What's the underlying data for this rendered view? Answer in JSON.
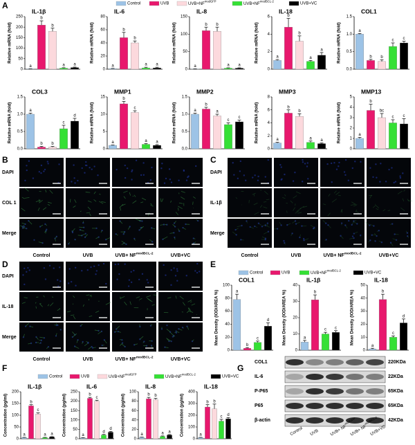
{
  "panel_labels": [
    "A",
    "B",
    "C",
    "D",
    "E",
    "F",
    "G"
  ],
  "chart_data": [
    {
      "type": "bar",
      "ylabel": "Relative mRNA (fold)",
      "legend": [
        {
          "name": "Control",
          "color": "#9dc3e6"
        },
        {
          "name": "UVB",
          "color": "#e8186d"
        },
        {
          "name": {
            "text": "UVB+NF",
            "sup": "modGFP"
          },
          "color": "#fcd9dd"
        },
        {
          "name": {
            "text": "UVB+NF",
            "sup": "modBCL-2"
          },
          "color": "#35e035"
        },
        {
          "name": "UVB+VC",
          "color": "#000000"
        }
      ],
      "subplots": [
        {
          "title": "IL-1β",
          "ylim": [
            0,
            250
          ],
          "yticks": [
            0,
            50,
            100,
            150,
            200,
            250
          ],
          "values": [
            2,
            210,
            180,
            5,
            8
          ],
          "errors": [
            0.5,
            20,
            15,
            2,
            2
          ],
          "letters": [
            "a",
            "b",
            "b",
            "a",
            "a"
          ]
        },
        {
          "title": "IL-6",
          "ylim": [
            0,
            80
          ],
          "yticks": [
            0,
            20,
            40,
            60,
            80
          ],
          "values": [
            1,
            48,
            40,
            2,
            2
          ],
          "errors": [
            0.2,
            8,
            3,
            1,
            1
          ],
          "letters": [
            "a",
            "b",
            "b",
            "a",
            "a"
          ]
        },
        {
          "title": "IL-8",
          "ylim": [
            0,
            150
          ],
          "yticks": [
            0,
            50,
            100,
            150
          ],
          "values": [
            1,
            110,
            108,
            3,
            3
          ],
          "errors": [
            0.2,
            10,
            12,
            1,
            1
          ],
          "letters": [
            "a",
            "b",
            "b",
            "a",
            "a"
          ]
        },
        {
          "title": "IL-18",
          "ylim": [
            0,
            6
          ],
          "yticks": [
            0,
            2,
            4,
            6
          ],
          "values": [
            1,
            4.8,
            3.2,
            0.9,
            1.6
          ],
          "errors": [
            0.1,
            1,
            0.6,
            0.1,
            0.3
          ],
          "letters": [
            "a",
            "b",
            "b",
            "a",
            "a"
          ]
        },
        {
          "title": "COL1",
          "ylim": [
            0,
            1.5
          ],
          "yticks": [
            {
              "value": 0,
              "label": "0.0"
            },
            0.5,
            {
              "value": 1,
              "label": "1.0"
            },
            1.5
          ],
          "values": [
            1,
            0.25,
            0.22,
            0.65,
            0.75
          ],
          "errors": [
            0.02,
            0.03,
            0.05,
            0.1,
            0.05
          ],
          "letters": [
            "a",
            "b",
            "b",
            "c",
            "c"
          ]
        },
        {
          "title": "COL3",
          "ylim": [
            0,
            1.5
          ],
          "yticks": [
            {
              "value": 0,
              "label": "0.0"
            },
            0.5,
            {
              "value": 1,
              "label": "1.0"
            },
            1.5
          ],
          "values": [
            1,
            0.05,
            0.05,
            0.58,
            0.8
          ],
          "errors": [
            0.03,
            0.02,
            0.02,
            0.1,
            0.08
          ],
          "letters": [
            "a",
            "b",
            "b",
            "c",
            "d"
          ]
        },
        {
          "title": "MMP1",
          "ylim": [
            0,
            15
          ],
          "yticks": [
            0,
            5,
            10,
            15
          ],
          "values": [
            1,
            13,
            10.5,
            1.3,
            1
          ],
          "errors": [
            0.1,
            0.7,
            0.5,
            0.2,
            0.2
          ],
          "letters": [
            "a",
            "b",
            "c",
            "a",
            "a"
          ]
        },
        {
          "title": "MMP2",
          "ylim": [
            0,
            1.5
          ],
          "yticks": [
            {
              "value": 0,
              "label": "0.0"
            },
            0.5,
            {
              "value": 1,
              "label": "1.0"
            },
            1.5
          ],
          "values": [
            1,
            1.15,
            0.95,
            0.7,
            0.78
          ],
          "errors": [
            0.03,
            0.05,
            0.05,
            0.05,
            0.05
          ],
          "letters": [
            "a",
            "b",
            "a",
            "c",
            "c"
          ]
        },
        {
          "title": "MMP3",
          "ylim": [
            0,
            8
          ],
          "yticks": [
            0,
            2,
            4,
            6,
            8
          ],
          "values": [
            0.9,
            5.5,
            5,
            1,
            0.8
          ],
          "errors": [
            0.1,
            0.5,
            0.4,
            0.2,
            0.1
          ],
          "letters": [
            "a",
            "b",
            "b",
            "a",
            "a"
          ]
        },
        {
          "title": "MMP13",
          "ylim": [
            0,
            5
          ],
          "yticks": [
            0,
            1,
            2,
            3,
            4,
            5
          ],
          "values": [
            1,
            3.7,
            3,
            2.5,
            2.4
          ],
          "errors": [
            0.1,
            0.6,
            0.4,
            0.3,
            0.5
          ],
          "letters": [
            "a",
            "b",
            "bc",
            "c",
            "c"
          ]
        }
      ]
    },
    {
      "type": "bar",
      "ylabel": "Mean Density (IOD/AREA %)",
      "legend": [
        {
          "name": "Control",
          "color": "#9dc3e6"
        },
        {
          "name": "UVB",
          "color": "#e8186d"
        },
        {
          "name": {
            "text": "UVB+NF",
            "sup": "modBCL-2"
          },
          "color": "#35e035"
        },
        {
          "name": "UVB+VC",
          "color": "#000000"
        }
      ],
      "subplots": [
        {
          "title": "COL1",
          "ylim": [
            0,
            100
          ],
          "yticks": [
            0,
            20,
            40,
            60,
            80,
            100
          ],
          "values": [
            78,
            3,
            12,
            37
          ],
          "errors": [
            8,
            1,
            2,
            5
          ],
          "letters": [
            "a",
            "b",
            "c",
            "d"
          ]
        },
        {
          "title": "IL-1β",
          "ylim": [
            0,
            40
          ],
          "yticks": [
            0,
            10,
            20,
            30,
            40
          ],
          "values": [
            5,
            31,
            10,
            11
          ],
          "errors": [
            1,
            3,
            1,
            1
          ],
          "letters": [
            "a",
            "b",
            "c",
            "c"
          ]
        },
        {
          "title": "IL-18",
          "ylim": [
            0,
            50
          ],
          "yticks": [
            0,
            10,
            20,
            30,
            40,
            50
          ],
          "values": [
            1,
            39,
            10,
            21
          ],
          "errors": [
            0.5,
            4,
            1,
            3
          ],
          "letters": [
            "a",
            "b",
            "c",
            "d"
          ]
        }
      ]
    },
    {
      "type": "bar",
      "ylabel": "Concentration (pg/ml)",
      "legend": [
        {
          "name": "Control",
          "color": "#9dc3e6"
        },
        {
          "name": "UVB",
          "color": "#e8186d"
        },
        {
          "name": {
            "text": "UVB+NF",
            "sup": "modGFP"
          },
          "color": "#fcd9dd"
        },
        {
          "name": {
            "text": "UVB+NF",
            "sup": "modBCL-2"
          },
          "color": "#35e035"
        },
        {
          "name": "UVB+VC",
          "color": "#000000"
        }
      ],
      "subplots": [
        {
          "title": "IL-1β",
          "ylim": [
            0,
            200
          ],
          "yticks": [
            0,
            50,
            100,
            150,
            200
          ],
          "values": [
            5,
            140,
            105,
            5,
            8
          ],
          "errors": [
            1,
            5,
            5,
            1,
            1
          ],
          "letters": [
            "a",
            "b",
            "c",
            "a",
            "a"
          ]
        },
        {
          "title": "IL-6",
          "ylim": [
            0,
            250
          ],
          "yticks": [
            0,
            50,
            100,
            150,
            200,
            250
          ],
          "values": [
            5,
            215,
            200,
            20,
            35
          ],
          "errors": [
            1,
            5,
            5,
            3,
            4
          ],
          "letters": [
            "a",
            "b",
            "c",
            "d",
            "d"
          ]
        },
        {
          "title": "IL-8",
          "ylim": [
            0,
            100
          ],
          "yticks": [
            0,
            20,
            40,
            60,
            80,
            100
          ],
          "values": [
            3,
            85,
            83,
            5,
            8
          ],
          "errors": [
            0.5,
            3,
            3,
            1,
            1
          ],
          "letters": [
            "a",
            "b",
            "b",
            "a",
            "a"
          ]
        },
        {
          "title": "IL-18",
          "ylim": [
            0,
            400
          ],
          "yticks": [
            0,
            100,
            200,
            300,
            400
          ],
          "values": [
            10,
            270,
            255,
            150,
            170
          ],
          "errors": [
            2,
            20,
            40,
            15,
            10
          ],
          "letters": [
            "a",
            "b",
            "b",
            "c",
            "d"
          ]
        }
      ]
    }
  ],
  "microscopy": [
    {
      "rows": [
        "DAPI",
        "COL 1",
        "Merge"
      ],
      "columns": [
        "Control",
        "UVB",
        {
          "text": "UVB+ NF",
          "sup": "modBCL-2"
        },
        "UVB+VC"
      ]
    },
    {
      "rows": [
        "DAPI",
        "IL-1β",
        "Merge"
      ],
      "columns": [
        "Control",
        "UVB",
        {
          "text": "UVB+ NF",
          "sup": "modBCL-2"
        },
        "UVB+VC"
      ]
    },
    {
      "rows": [
        "DAPI",
        "IL-18",
        "Merge"
      ],
      "columns": [
        "Control",
        "UVB",
        {
          "text": "UVB+ NF",
          "sup": "modBCL-2"
        },
        "UVB+VC"
      ]
    }
  ],
  "western_blot": {
    "proteins": [
      "COL1",
      "IL-6",
      "P-P65",
      "P65",
      "β-actin"
    ],
    "sizes": [
      "220KDa",
      "22KDa",
      "65KDa",
      "65KDa",
      "42KDa"
    ],
    "lanes": [
      "Control",
      "UVB",
      {
        "text": "UVB+ NF",
        "sup": "modGFP"
      },
      {
        "text": "UVB+ NF",
        "sup": "modBCL-2"
      },
      "UVB+VC"
    ]
  }
}
